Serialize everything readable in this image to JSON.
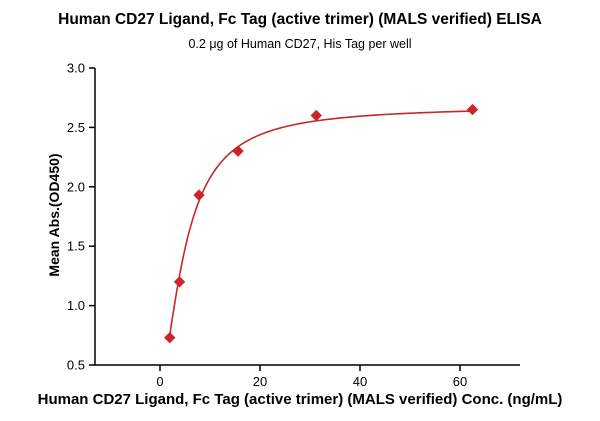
{
  "chart_data": {
    "type": "scatter",
    "title": "Human CD27 Ligand, Fc Tag (active trimer) (MALS verified) ELISA",
    "subtitle": "0.2 μg of Human CD27, His Tag per well",
    "xlabel": "Human CD27 Ligand, Fc Tag (active trimer) (MALS verified) Conc. (ng/mL)",
    "ylabel": "Mean Abs.(OD450)",
    "x": [
      1.95,
      3.9,
      7.8,
      15.6,
      31.25,
      62.5
    ],
    "y": [
      0.73,
      1.2,
      1.93,
      2.3,
      2.6,
      2.65
    ],
    "xlim": [
      -13,
      72
    ],
    "ylim": [
      0.5,
      3.0
    ],
    "xtick_values": [
      0,
      20,
      40,
      60
    ],
    "xtick_labels": [
      "0",
      "20",
      "40",
      "60"
    ],
    "ytick_values": [
      0.5,
      1.0,
      1.5,
      2.0,
      2.5,
      3.0
    ],
    "ytick_labels": [
      "0.5",
      "1.0",
      "1.5",
      "2.0",
      "2.5",
      "3.0"
    ],
    "curve": {
      "model": "4pl",
      "bottom": 0.35,
      "top": 2.68,
      "ec50": 5.2,
      "hill": 1.6,
      "x_start": 1.95,
      "x_end": 62.5
    },
    "marker": "diamond",
    "marker_color": "#c9262c",
    "line_color": "#c9262c",
    "axis_color": "#000000",
    "grid": false,
    "legend": "none"
  }
}
